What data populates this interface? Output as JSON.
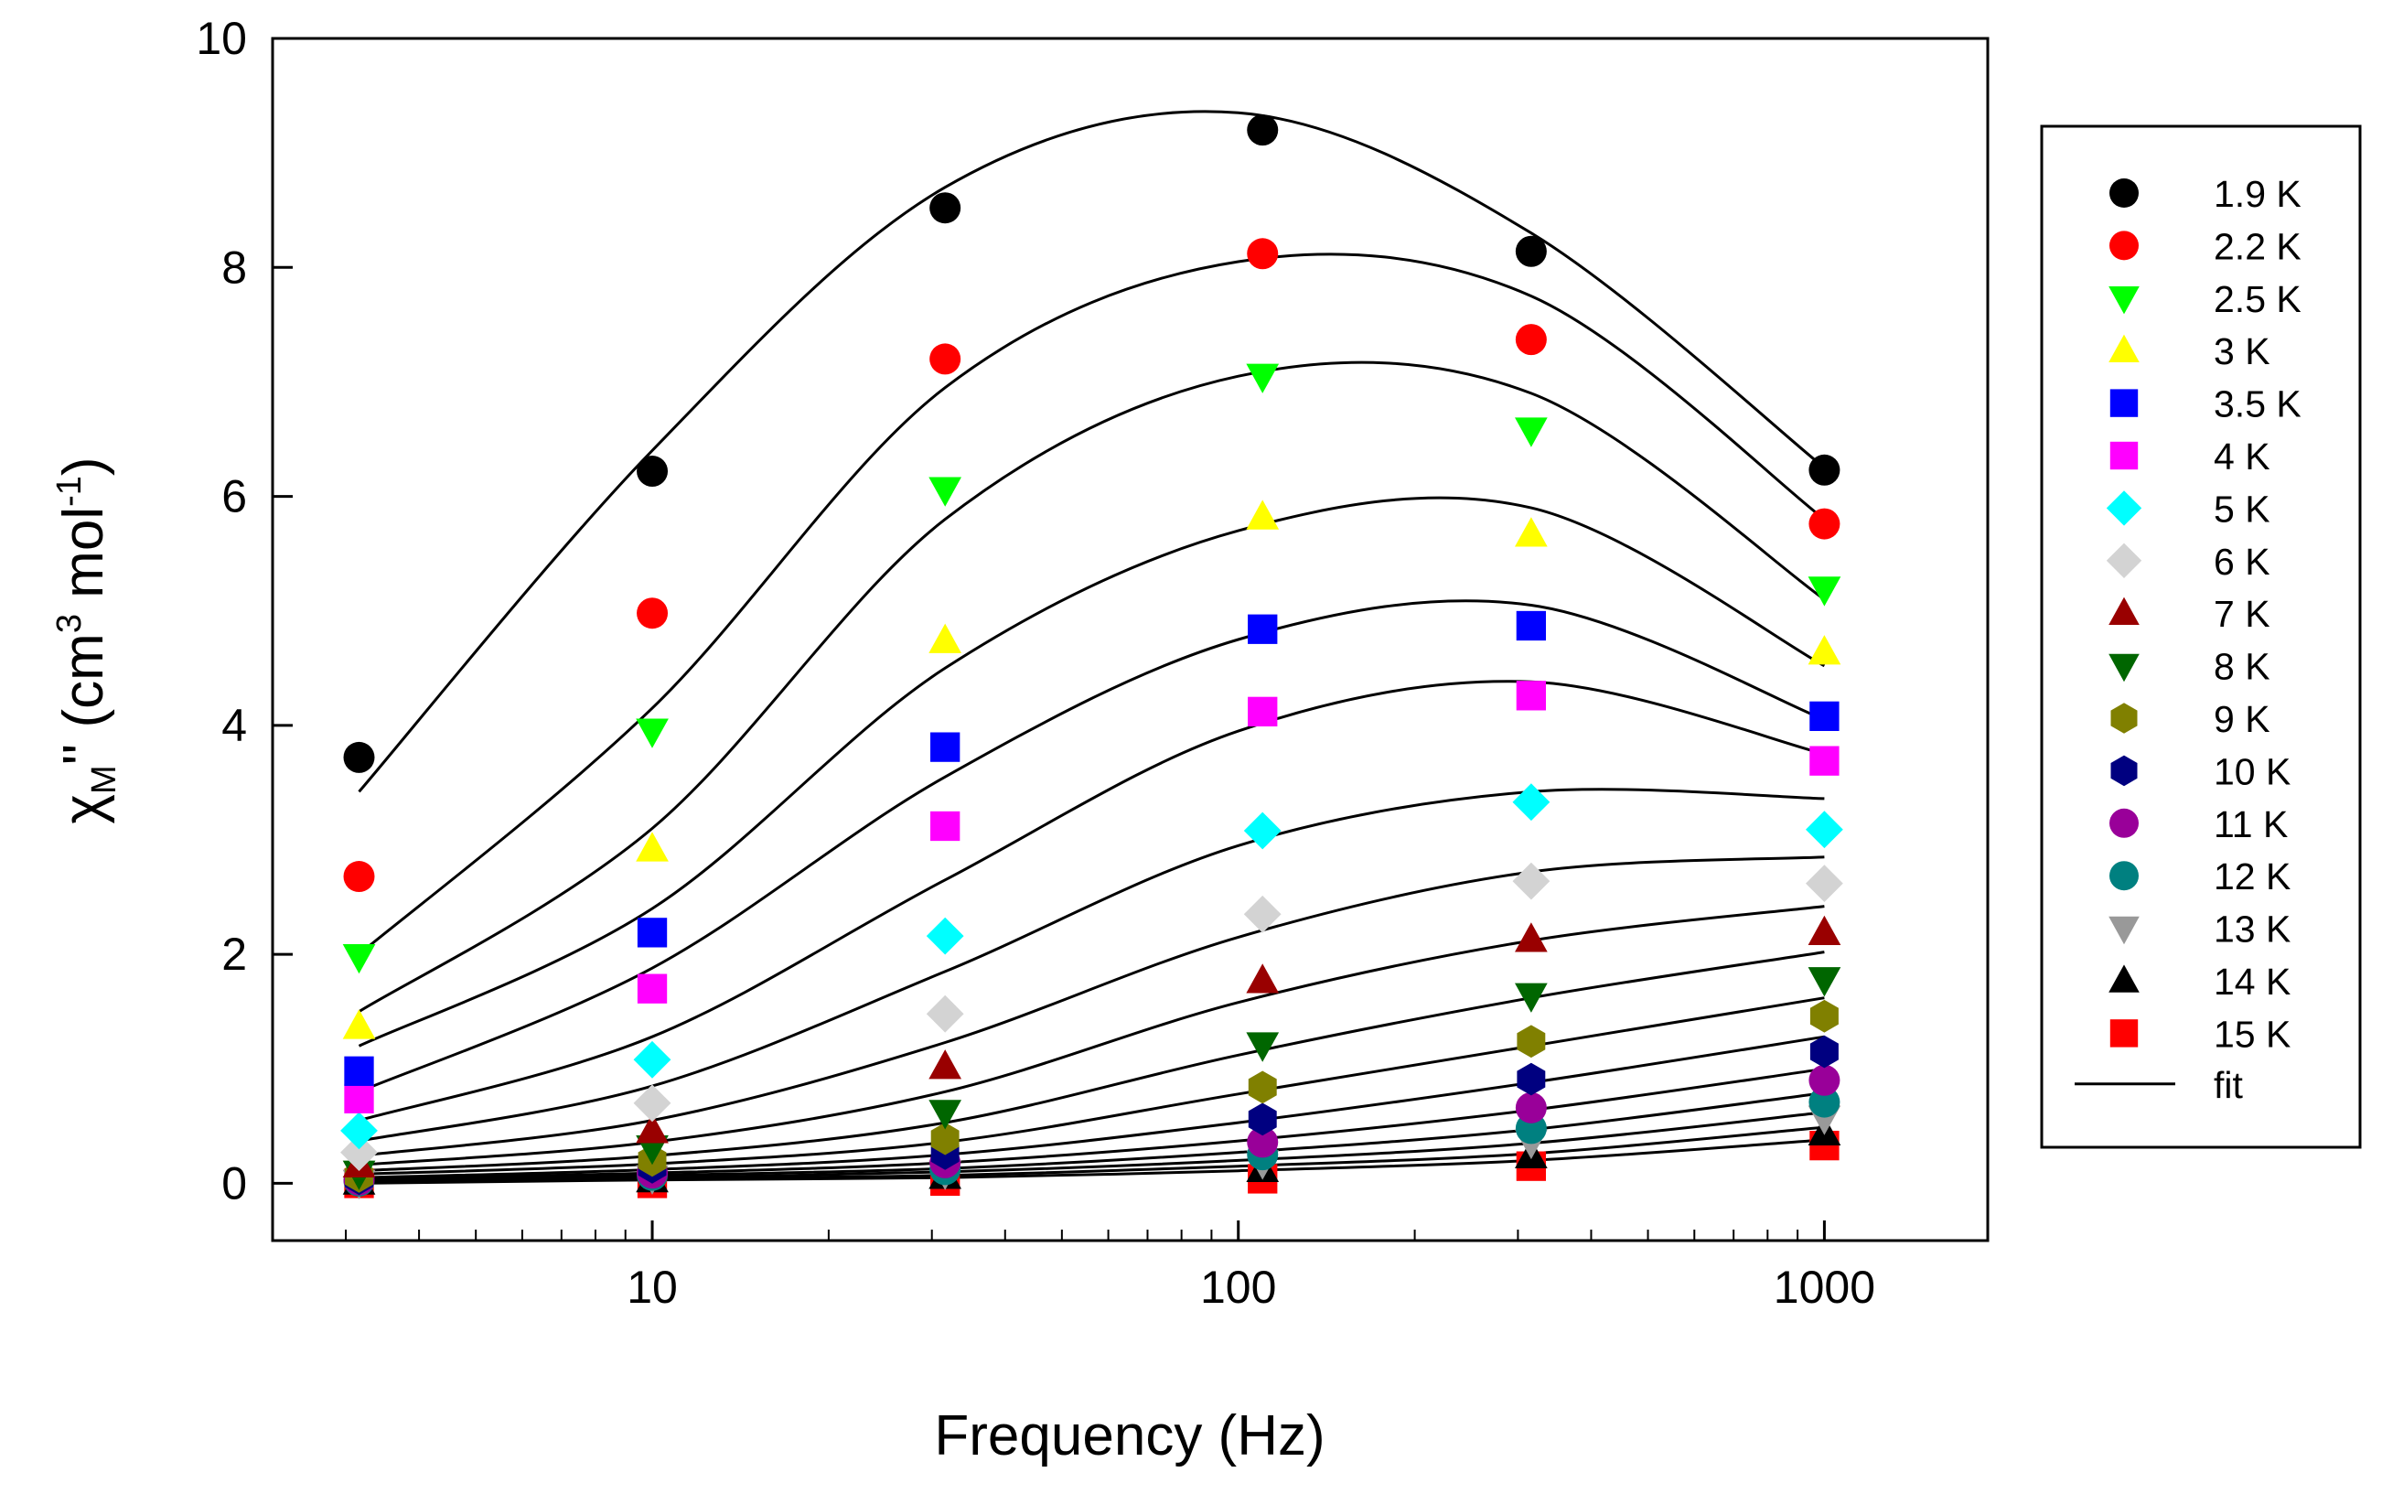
{
  "chart_data": {
    "type": "scatter",
    "title": "",
    "xlabel": "Frequency (Hz)",
    "ylabel": {
      "base": "χ",
      "sub": "M",
      "mid": "'' (cm",
      "sup1": "3",
      "mid2": " mol",
      "sup2": "-1",
      "end": ")"
    },
    "x_scale": "log",
    "xlim": [
      2.25,
      1900
    ],
    "ylim": [
      -0.5,
      10
    ],
    "x_ticks": [
      10,
      100,
      1000
    ],
    "x_tick_labels": [
      "10",
      "100",
      "1000"
    ],
    "y_ticks": [
      0,
      2,
      4,
      6,
      8,
      10
    ],
    "y_tick_labels": [
      "0",
      "2",
      "4",
      "6",
      "8",
      "10"
    ],
    "x": [
      3.16,
      10,
      31.6,
      110,
      316,
      1000
    ],
    "legend_position": "right",
    "series": [
      {
        "name": "1.9 K",
        "marker": "circle",
        "color": "#000000",
        "values": [
          3.72,
          6.22,
          8.52,
          9.2,
          8.14,
          6.23
        ]
      },
      {
        "name": "2.2 K",
        "marker": "circle",
        "color": "#ff0000",
        "values": [
          2.68,
          4.98,
          7.2,
          8.12,
          7.37,
          5.76
        ]
      },
      {
        "name": "2.5 K",
        "marker": "triangle-down",
        "color": "#00ff00",
        "values": [
          1.98,
          3.95,
          6.06,
          7.05,
          6.58,
          5.19
        ]
      },
      {
        "name": "3 K",
        "marker": "triangle-up",
        "color": "#ffff00",
        "values": [
          1.37,
          2.92,
          4.74,
          5.82,
          5.67,
          4.64
        ]
      },
      {
        "name": "3.5 K",
        "marker": "square",
        "color": "#0000ff",
        "values": [
          0.98,
          2.19,
          3.81,
          4.84,
          4.87,
          4.08
        ]
      },
      {
        "name": "4 K",
        "marker": "square",
        "color": "#ff00ff",
        "values": [
          0.74,
          1.7,
          3.12,
          4.12,
          4.26,
          3.69
        ]
      },
      {
        "name": "5 K",
        "marker": "diamond",
        "color": "#00ffff",
        "values": [
          0.46,
          1.08,
          2.16,
          3.08,
          3.33,
          3.09
        ]
      },
      {
        "name": "6 K",
        "marker": "diamond",
        "color": "#d3d3d3",
        "values": [
          0.27,
          0.7,
          1.48,
          2.35,
          2.64,
          2.62
        ]
      },
      {
        "name": "7 K",
        "marker": "triangle-up",
        "color": "#990000",
        "values": [
          0.16,
          0.46,
          1.02,
          1.77,
          2.13,
          2.19
        ]
      },
      {
        "name": "8 K",
        "marker": "triangle-down",
        "color": "#006600",
        "values": [
          0.09,
          0.31,
          0.62,
          1.21,
          1.64,
          1.78
        ]
      },
      {
        "name": "9 K",
        "marker": "hexagon",
        "color": "#808000",
        "values": [
          0.06,
          0.2,
          0.39,
          0.84,
          1.24,
          1.46
        ]
      },
      {
        "name": "10 K",
        "marker": "hexagon",
        "color": "#000080",
        "values": [
          0.04,
          0.14,
          0.26,
          0.56,
          0.91,
          1.15
        ]
      },
      {
        "name": "11 K",
        "marker": "circle",
        "color": "#990099",
        "values": [
          0.03,
          0.09,
          0.18,
          0.36,
          0.66,
          0.9
        ]
      },
      {
        "name": "12 K",
        "marker": "circle",
        "color": "#008080",
        "values": [
          0.02,
          0.07,
          0.12,
          0.25,
          0.48,
          0.71
        ]
      },
      {
        "name": "13 K",
        "marker": "triangle-down",
        "color": "#999999",
        "values": [
          0.01,
          0.05,
          0.09,
          0.18,
          0.36,
          0.57
        ]
      },
      {
        "name": "14 K",
        "marker": "triangle-up",
        "color": "#000000",
        "values": [
          0.01,
          0.03,
          0.06,
          0.12,
          0.24,
          0.44
        ]
      },
      {
        "name": "15 K",
        "marker": "square",
        "color": "#ff0000",
        "values": [
          0.0,
          0.0,
          0.02,
          0.04,
          0.15,
          0.33
        ]
      }
    ],
    "fit": {
      "name": "fit",
      "color": "#000000",
      "x": [
        3.16,
        10,
        31.6,
        100,
        316,
        1000
      ],
      "curves": [
        [
          3.42,
          6.4,
          8.7,
          9.35,
          8.3,
          6.25
        ],
        [
          2.0,
          4.15,
          6.95,
          8.05,
          7.75,
          5.8
        ],
        [
          1.5,
          3.1,
          5.8,
          7.05,
          6.9,
          5.1
        ],
        [
          1.2,
          2.4,
          4.5,
          5.7,
          5.9,
          4.52
        ],
        [
          0.8,
          1.88,
          3.55,
          4.75,
          5.05,
          4.05
        ],
        [
          0.55,
          1.28,
          2.65,
          3.95,
          4.38,
          3.75
        ],
        [
          0.37,
          0.85,
          1.85,
          2.95,
          3.42,
          3.36
        ],
        [
          0.24,
          0.55,
          1.23,
          2.15,
          2.72,
          2.85
        ],
        [
          0.16,
          0.36,
          0.8,
          1.58,
          2.12,
          2.42
        ],
        [
          0.11,
          0.24,
          0.53,
          1.12,
          1.62,
          2.02
        ],
        [
          0.08,
          0.17,
          0.36,
          0.78,
          1.2,
          1.62
        ],
        [
          0.05,
          0.12,
          0.25,
          0.53,
          0.88,
          1.28
        ],
        [
          0.04,
          0.09,
          0.18,
          0.37,
          0.64,
          1.0
        ],
        [
          0.03,
          0.07,
          0.13,
          0.27,
          0.47,
          0.79
        ],
        [
          0.02,
          0.05,
          0.1,
          0.2,
          0.35,
          0.62
        ],
        [
          0.01,
          0.04,
          0.07,
          0.15,
          0.26,
          0.49
        ],
        [
          0.0,
          0.03,
          0.05,
          0.11,
          0.2,
          0.38
        ]
      ]
    }
  }
}
